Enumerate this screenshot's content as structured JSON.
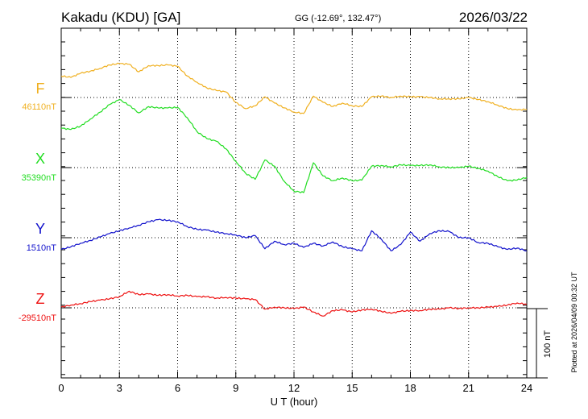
{
  "header": {
    "station": "Kakadu (KDU)  [GA]",
    "coords": "GG (-12.69°, 132.47°)",
    "date": "2026/03/22"
  },
  "footer": {
    "plotted": "Plotted at 2026/04/09 00:32 UT"
  },
  "colors": {
    "F": "#f0b020",
    "X": "#22dd22",
    "Y": "#1111cc",
    "Z": "#ee1111",
    "axis": "#000000"
  },
  "chart_data": {
    "type": "line",
    "title": "Kakadu (KDU)  [GA]",
    "xlabel": "U T (hour)",
    "ylabel": "",
    "x_ticks": [
      "0",
      "3",
      "6",
      "9",
      "12",
      "15",
      "18",
      "21",
      "24"
    ],
    "xlim": [
      0,
      24
    ],
    "scale_bar": "100 nT",
    "grid": "dotted",
    "series": [
      {
        "name": "F",
        "baseline_label": "46110nT",
        "baseline": 46110,
        "x": [
          0,
          0.5,
          1,
          1.5,
          2,
          2.5,
          3,
          3.5,
          4,
          4.5,
          5,
          5.5,
          6,
          6.5,
          7,
          7.5,
          8,
          8.5,
          9,
          9.5,
          10,
          10.5,
          11,
          11.5,
          12,
          12.5,
          13,
          13.5,
          14,
          14.5,
          15,
          15.5,
          16,
          16.5,
          17,
          17.5,
          18,
          18.5,
          19,
          19.5,
          20,
          20.5,
          21,
          21.5,
          22,
          22.5,
          23,
          23.5,
          24
        ],
        "values": [
          46141,
          46139,
          46145,
          46148,
          46152,
          46157,
          46159,
          46158,
          46147,
          46156,
          46156,
          46157,
          46155,
          46141,
          46132,
          46124,
          46120,
          46118,
          46103,
          46094,
          46098,
          46111,
          46102,
          46095,
          46089,
          46087,
          46112,
          46103,
          46097,
          46102,
          46098,
          46097,
          46111,
          46112,
          46110,
          46112,
          46111,
          46111,
          46110,
          46108,
          46108,
          46108,
          46110,
          46107,
          46104,
          46099,
          46094,
          46092,
          46093
        ]
      },
      {
        "name": "X",
        "baseline_label": "35390nT",
        "baseline": 35390,
        "x": [
          0,
          0.5,
          1,
          1.5,
          2,
          2.5,
          3,
          3.5,
          4,
          4.5,
          5,
          5.5,
          6,
          6.5,
          7,
          7.5,
          8,
          8.5,
          9,
          9.5,
          10,
          10.5,
          11,
          11.5,
          12,
          12.5,
          13,
          13.5,
          14,
          14.5,
          15,
          15.5,
          16,
          16.5,
          17,
          17.5,
          18,
          18.5,
          19,
          19.5,
          20,
          20.5,
          21,
          21.5,
          22,
          22.5,
          23,
          23.5,
          24
        ],
        "values": [
          35447,
          35445,
          35450,
          35460,
          35470,
          35481,
          35488,
          35480,
          35469,
          35478,
          35476,
          35476,
          35477,
          35462,
          35442,
          35432,
          35428,
          35417,
          35399,
          35382,
          35373,
          35401,
          35392,
          35370,
          35356,
          35354,
          35397,
          35378,
          35371,
          35375,
          35371,
          35372,
          35392,
          35393,
          35391,
          35394,
          35393,
          35393,
          35394,
          35391,
          35390,
          35390,
          35392,
          35389,
          35385,
          35377,
          35371,
          35372,
          35376
        ]
      },
      {
        "name": "Y",
        "baseline_label": "1510nT",
        "baseline": 1510,
        "x": [
          0,
          0.5,
          1,
          1.5,
          2,
          2.5,
          3,
          3.5,
          4,
          4.5,
          5,
          5.5,
          6,
          6.5,
          7,
          7.5,
          8,
          8.5,
          9,
          9.5,
          10,
          10.5,
          11,
          11.5,
          12,
          12.5,
          13,
          13.5,
          14,
          14.5,
          15,
          15.5,
          16,
          16.5,
          17,
          17.5,
          18,
          18.5,
          19,
          19.5,
          20,
          20.5,
          21,
          21.5,
          22,
          22.5,
          23,
          23.5,
          24
        ],
        "values": [
          1493,
          1497,
          1502,
          1506,
          1511,
          1516,
          1520,
          1524,
          1528,
          1533,
          1536,
          1535,
          1533,
          1526,
          1522,
          1521,
          1518,
          1516,
          1514,
          1510,
          1513,
          1494,
          1505,
          1500,
          1502,
          1496,
          1502,
          1498,
          1504,
          1497,
          1494,
          1491,
          1520,
          1508,
          1491,
          1500,
          1518,
          1505,
          1516,
          1520,
          1519,
          1510,
          1510,
          1503,
          1502,
          1497,
          1493,
          1495,
          1491
        ]
      },
      {
        "name": "Z",
        "baseline_label": "-29510nT",
        "baseline": -29510,
        "x": [
          0,
          0.5,
          1,
          1.5,
          2,
          2.5,
          3,
          3.5,
          4,
          4.5,
          5,
          5.5,
          6,
          6.5,
          7,
          7.5,
          8,
          8.5,
          9,
          9.5,
          10,
          10.5,
          11,
          11.5,
          12,
          12.5,
          13,
          13.5,
          14,
          14.5,
          15,
          15.5,
          16,
          16.5,
          17,
          17.5,
          18,
          18.5,
          19,
          19.5,
          20,
          20.5,
          21,
          21.5,
          22,
          22.5,
          23,
          23.5,
          24
        ],
        "values": [
          -29509,
          -29506,
          -29504,
          -29501,
          -29499,
          -29497,
          -29494,
          -29486,
          -29491,
          -29490,
          -29492,
          -29491,
          -29493,
          -29492,
          -29494,
          -29494,
          -29496,
          -29495,
          -29496,
          -29497,
          -29498,
          -29512,
          -29509,
          -29510,
          -29511,
          -29509,
          -29516,
          -29522,
          -29514,
          -29513,
          -29516,
          -29513,
          -29512,
          -29515,
          -29518,
          -29515,
          -29514,
          -29514,
          -29512,
          -29512,
          -29510,
          -29511,
          -29510,
          -29510,
          -29509,
          -29508,
          -29506,
          -29503,
          -29505
        ]
      }
    ]
  }
}
